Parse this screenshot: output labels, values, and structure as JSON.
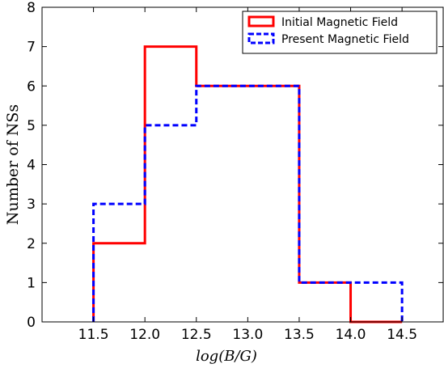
{
  "chart_data": {
    "type": "histogram",
    "xlabel": "log(B/G)",
    "ylabel": "Number of NSs",
    "xlim": [
      11.0,
      14.9
    ],
    "ylim": [
      0,
      8
    ],
    "xticks": [
      11.5,
      12.0,
      12.5,
      13.0,
      13.5,
      14.0,
      14.5
    ],
    "xtick_labels": [
      "11.5",
      "12.0",
      "12.5",
      "13.0",
      "13.5",
      "14.0",
      "14.5"
    ],
    "yticks": [
      0,
      1,
      2,
      3,
      4,
      5,
      6,
      7,
      8
    ],
    "ytick_labels": [
      "0",
      "1",
      "2",
      "3",
      "4",
      "5",
      "6",
      "7",
      "8"
    ],
    "bin_edges": [
      11.5,
      12.0,
      12.5,
      13.0,
      13.5,
      14.0,
      14.5
    ],
    "series": [
      {
        "name": "Initial Magnetic Field",
        "counts": [
          2,
          7,
          6,
          6,
          1,
          0
        ],
        "color": "#ff0000",
        "style": "solid"
      },
      {
        "name": "Present Magnetic Field",
        "counts": [
          3,
          5,
          6,
          6,
          1,
          1
        ],
        "color": "#0000ff",
        "style": "dashed"
      }
    ],
    "legend_position": "top-right",
    "grid": false
  }
}
